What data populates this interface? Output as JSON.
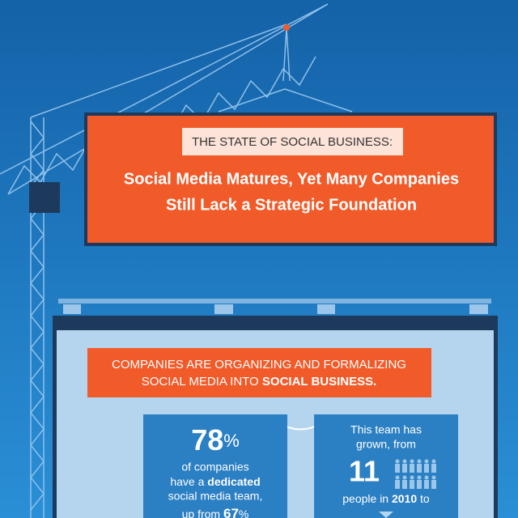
{
  "header": {
    "kicker": "THE STATE OF SOCIAL BUSINESS:",
    "title_lines": [
      "Social Media Matures, Yet Many Companies",
      "Still Lack a Strategic Foundation"
    ]
  },
  "section": {
    "heading_line1": "COMPANIES ARE ORGANIZING AND FORMALIZING",
    "heading_line2_plain": "SOCIAL MEDIA INTO ",
    "heading_line2_bold": "SOCIAL BUSINESS."
  },
  "cards": [
    {
      "stat": "78",
      "stat_unit": "%",
      "line1": "of companies",
      "line2_plain": "have a ",
      "line2_bold": "dedicated",
      "line3": "social media team,",
      "line4_plain": "up from ",
      "line4_stat": "67",
      "line4_unit": "%"
    },
    {
      "line1": "This team has",
      "line2": "grown, from",
      "stat": "11",
      "line3_plain": "people in ",
      "line3_bold": "2010",
      "line3_end": " to"
    }
  ]
}
